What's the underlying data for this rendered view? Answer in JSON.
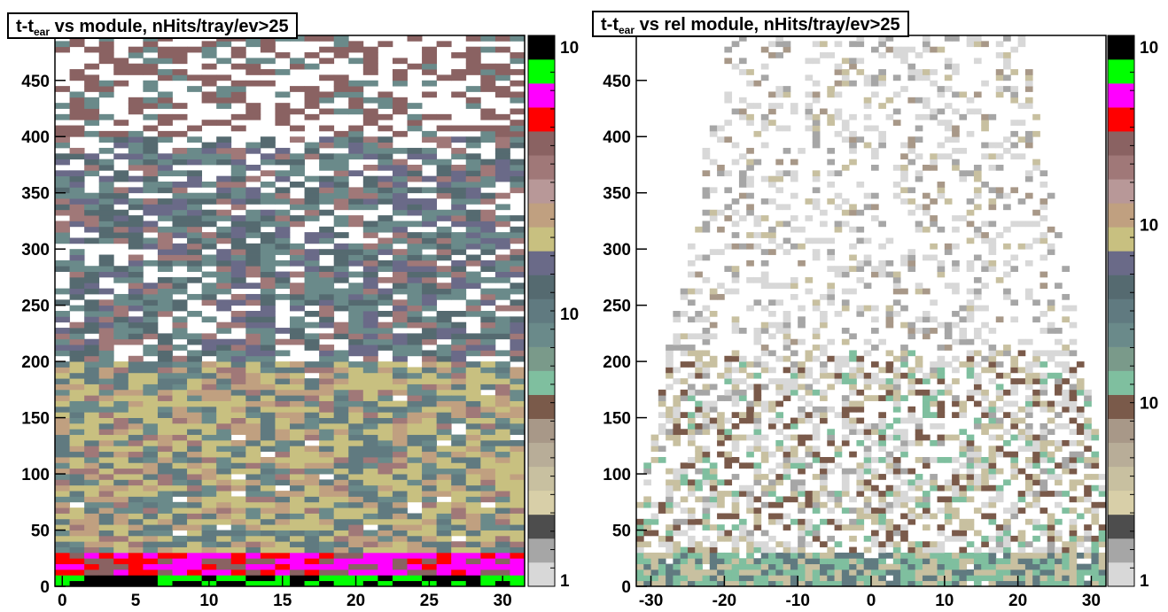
{
  "chart_data": [
    {
      "type": "heatmap",
      "title": {
        "main": "t-t",
        "sub": "ear",
        "rest": " vs module, nHits/tray/ev>25"
      },
      "x_ticks": [
        "0",
        "5",
        "10",
        "15",
        "20",
        "25",
        "30"
      ],
      "x_tick_values": [
        0,
        5,
        10,
        15,
        20,
        25,
        30
      ],
      "xlim": [
        -0.5,
        31.5
      ],
      "y_ticks": [
        "0",
        "50",
        "100",
        "150",
        "200",
        "250",
        "300",
        "350",
        "400",
        "450"
      ],
      "y_tick_values": [
        0,
        50,
        100,
        150,
        200,
        250,
        300,
        350,
        400,
        450
      ],
      "ylim": [
        0,
        490
      ],
      "z_scale": "log",
      "palette_labels": [
        "10",
        "10",
        "1"
      ],
      "palette_label_values": [
        10,
        10,
        1
      ],
      "density_profile": "high near y=0 (magenta/red/green/black up to ~30), olive-tan band 30-200, gray-blue band 200-400, sparse brown above 400",
      "grid": false
    },
    {
      "type": "heatmap",
      "title": {
        "main": "t-t",
        "sub": "ear",
        "rest": " vs rel module, nHits/tray/ev>25"
      },
      "x_ticks": [
        "-30",
        "-20",
        "-10",
        "0",
        "10",
        "20",
        "30"
      ],
      "x_tick_values": [
        -30,
        -20,
        -10,
        0,
        10,
        20,
        30
      ],
      "xlim": [
        -32,
        32
      ],
      "y_ticks": [
        "0",
        "50",
        "100",
        "150",
        "200",
        "250",
        "300",
        "350",
        "400",
        "450"
      ],
      "y_tick_values": [
        0,
        50,
        100,
        150,
        200,
        250,
        300,
        350,
        400,
        450
      ],
      "ylim": [
        0,
        490
      ],
      "z_scale": "log",
      "palette_labels": [
        "10",
        "10",
        "10",
        "1"
      ],
      "palette_label_values": [
        10,
        10,
        10,
        1
      ],
      "density_profile": "sparse gray/tan cells, denser brown/green band near y=0-200, diamond-shaped envelope narrowing with height",
      "grid": false
    }
  ],
  "palette_colors": [
    "#d8d8d8",
    "#a6a6a6",
    "#4d4d4d",
    "#d8cfa8",
    "#c8c0a0",
    "#b8ad98",
    "#a89888",
    "#7a5a4a",
    "#7fbf9f",
    "#7a9a8a",
    "#6a8a8a",
    "#607a80",
    "#556a70",
    "#6a6a88",
    "#c8c080",
    "#c0a080",
    "#b89898",
    "#a07878",
    "#8a6262",
    "#ff0000",
    "#ff00ff",
    "#00ff00",
    "#000000"
  ]
}
